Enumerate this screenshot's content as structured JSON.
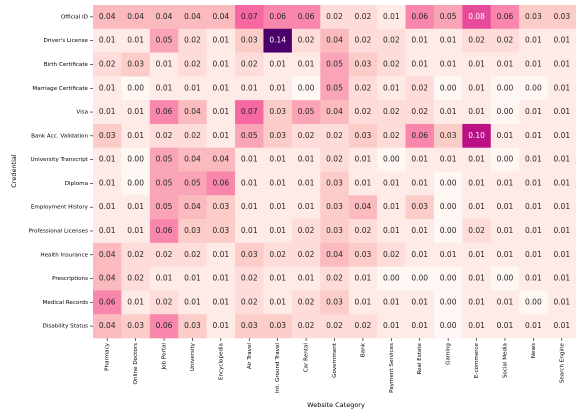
{
  "chart_data": {
    "type": "heatmap",
    "xlabel": "Website Category",
    "ylabel": "Credential",
    "colormap": [
      "#fff7f3",
      "#fde0dd",
      "#fcc5c0",
      "#fa9fb5",
      "#f768a1",
      "#dd3497",
      "#ae017e",
      "#7a0177",
      "#49006a"
    ],
    "x": [
      "Pharmacy",
      "Online Doctors",
      "Job Portal",
      "University",
      "Encyclopedia",
      "Air Travel",
      "Int. Ground Travel",
      "Car Rental",
      "Government",
      "Bank",
      "Payment Services",
      "Real Estate",
      "Gaming",
      "E-commerce",
      "Social Media",
      "News",
      "Search Engine"
    ],
    "y": [
      "Official ID",
      "Driver's License",
      "Birth Certificate",
      "Marriage Certificate",
      "Visa",
      "Bank Acc. Validation",
      "University Transcript",
      "Diploma",
      "Employment History",
      "Professional Licenses",
      "Health Insurance",
      "Prescriptions",
      "Medical Records",
      "Disability Status"
    ],
    "values": [
      [
        0.04,
        0.04,
        0.04,
        0.04,
        0.04,
        0.07,
        0.06,
        0.06,
        0.02,
        0.02,
        0.01,
        0.06,
        0.05,
        0.08,
        0.06,
        0.03,
        0.03
      ],
      [
        0.01,
        0.01,
        0.05,
        0.02,
        0.01,
        0.03,
        0.14,
        0.02,
        0.04,
        0.02,
        0.02,
        0.01,
        0.01,
        0.02,
        0.02,
        0.01,
        0.01
      ],
      [
        0.02,
        0.03,
        0.01,
        0.02,
        0.01,
        0.02,
        0.01,
        0.01,
        0.05,
        0.03,
        0.02,
        0.01,
        0.01,
        0.01,
        0.01,
        0.01,
        0.01
      ],
      [
        0.01,
        0.0,
        0.01,
        0.01,
        0.01,
        0.01,
        0.01,
        0.0,
        0.05,
        0.02,
        0.01,
        0.02,
        0.0,
        0.01,
        0.0,
        0.0,
        0.01
      ],
      [
        0.01,
        0.01,
        0.06,
        0.04,
        0.01,
        0.07,
        0.03,
        0.05,
        0.04,
        0.02,
        0.02,
        0.02,
        0.01,
        0.01,
        0.0,
        0.01,
        0.01
      ],
      [
        0.03,
        0.01,
        0.02,
        0.02,
        0.01,
        0.05,
        0.03,
        0.02,
        0.02,
        0.03,
        0.02,
        0.06,
        0.03,
        0.1,
        0.01,
        0.01,
        0.01
      ],
      [
        0.01,
        0.0,
        0.05,
        0.04,
        0.04,
        0.01,
        0.01,
        0.01,
        0.02,
        0.01,
        0.0,
        0.01,
        0.01,
        0.01,
        0.0,
        0.01,
        0.01
      ],
      [
        0.01,
        0.0,
        0.05,
        0.05,
        0.06,
        0.01,
        0.01,
        0.01,
        0.03,
        0.01,
        0.01,
        0.01,
        0.0,
        0.01,
        0.01,
        0.01,
        0.01
      ],
      [
        0.01,
        0.01,
        0.05,
        0.04,
        0.03,
        0.01,
        0.01,
        0.01,
        0.03,
        0.04,
        0.01,
        0.03,
        0.0,
        0.01,
        0.01,
        0.01,
        0.01
      ],
      [
        0.01,
        0.01,
        0.06,
        0.03,
        0.03,
        0.01,
        0.01,
        0.02,
        0.03,
        0.02,
        0.01,
        0.01,
        0.0,
        0.02,
        0.01,
        0.01,
        0.01
      ],
      [
        0.04,
        0.02,
        0.02,
        0.02,
        0.01,
        0.03,
        0.02,
        0.02,
        0.04,
        0.03,
        0.02,
        0.01,
        0.01,
        0.01,
        0.01,
        0.01,
        0.01
      ],
      [
        0.04,
        0.02,
        0.01,
        0.01,
        0.01,
        0.02,
        0.01,
        0.01,
        0.02,
        0.01,
        0.0,
        0.0,
        0.0,
        0.01,
        0.0,
        0.01,
        0.01
      ],
      [
        0.06,
        0.01,
        0.02,
        0.01,
        0.01,
        0.02,
        0.01,
        0.02,
        0.03,
        0.01,
        0.01,
        0.01,
        0.0,
        0.01,
        0.01,
        0.0,
        0.01
      ],
      [
        0.04,
        0.03,
        0.06,
        0.03,
        0.01,
        0.03,
        0.03,
        0.02,
        0.02,
        0.02,
        0.01,
        0.01,
        0.0,
        0.01,
        0.01,
        0.01,
        0.01
      ]
    ],
    "value_labels": [
      [
        "0.04",
        "0.04",
        "0.04",
        "0.04",
        "0.04",
        "0.07",
        "0.06",
        "0.06",
        "0.02",
        "0.02",
        "0.01",
        "0.06",
        "0.05",
        "0.08",
        "0.06",
        "0.03",
        "0.03"
      ],
      [
        "0.01",
        "0.01",
        "0.05",
        "0.02",
        "0.01",
        "0.03",
        "0.14",
        "0.02",
        "0.04",
        "0.02",
        "0.02",
        "0.01",
        "0.01",
        "0.02",
        "0.02",
        "0.01",
        "0.01"
      ],
      [
        "0.02",
        "0.03",
        "0.01",
        "0.02",
        "0.01",
        "0.02",
        "0.01",
        "0.01",
        "0.05",
        "0.03",
        "0.02",
        "0.01",
        "0.01",
        "0.01",
        "0.01",
        "0.01",
        "0.01"
      ],
      [
        "0.01",
        "0.00",
        "0.01",
        "0.01",
        "0.01",
        "0.01",
        "0.01",
        "0.00",
        "0.05",
        "0.02",
        "0.01",
        "0.02",
        "0.00",
        "0.01",
        "0.00",
        "0.00",
        "0.01"
      ],
      [
        "0.01",
        "0.01",
        "0.06",
        "0.04",
        "0.01",
        "0.07",
        "0.03",
        "0.05",
        "0.04",
        "0.02",
        "0.02",
        "0.02",
        "0.01",
        "0.01",
        "0.00",
        "0.01",
        "0.01"
      ],
      [
        "0.03",
        "0.01",
        "0.02",
        "0.02",
        "0.01",
        "0.05",
        "0.03",
        "0.02",
        "0.02",
        "0.03",
        "0.02",
        "0.06",
        "0.03",
        "0.10",
        "0.01",
        "0.01",
        "0.01"
      ],
      [
        "0.01",
        "0.00",
        "0.05",
        "0.04",
        "0.04",
        "0.01",
        "0.01",
        "0.01",
        "0.02",
        "0.01",
        "0.00",
        "0.01",
        "0.01",
        "0.01",
        "0.00",
        "0.01",
        "0.01"
      ],
      [
        "0.01",
        "0.00",
        "0.05",
        "0.05",
        "0.06",
        "0.01",
        "0.01",
        "0.01",
        "0.03",
        "0.01",
        "0.01",
        "0.01",
        "0.00",
        "0.01",
        "0.01",
        "0.01",
        "0.01"
      ],
      [
        "0.01",
        "0.01",
        "0.05",
        "0.04",
        "0.03",
        "0.01",
        "0.01",
        "0.01",
        "0.03",
        "0.04",
        "0.01",
        "0.03",
        "0.00",
        "0.01",
        "0.01",
        "0.01",
        "0.01"
      ],
      [
        "0.01",
        "0.01",
        "0.06",
        "0.03",
        "0.03",
        "0.01",
        "0.01",
        "0.02",
        "0.03",
        "0.02",
        "0.01",
        "0.01",
        "0.00",
        "0.02",
        "0.01",
        "0.01",
        "0.01"
      ],
      [
        "0.04",
        "0.02",
        "0.02",
        "0.02",
        "0.01",
        "0.03",
        "0.02",
        "0.02",
        "0.04",
        "0.03",
        "0.02",
        "0.01",
        "0.01",
        "0.01",
        "0.01",
        "0.01",
        "0.01"
      ],
      [
        "0.04",
        "0.02",
        "0.01",
        "0.01",
        "0.01",
        "0.02",
        "0.01",
        "0.01",
        "0.02",
        "0.01",
        "0.00",
        "0.00",
        "0.00",
        "0.01",
        "0.00",
        "0.01",
        "0.01"
      ],
      [
        "0.06",
        "0.01",
        "0.02",
        "0.01",
        "0.01",
        "0.02",
        "0.01",
        "0.02",
        "0.03",
        "0.01",
        "0.01",
        "0.01",
        "0.00",
        "0.01",
        "0.01",
        "0.00",
        "0.01"
      ],
      [
        "0.04",
        "0.03",
        "0.06",
        "0.03",
        "0.01",
        "0.03",
        "0.03",
        "0.02",
        "0.02",
        "0.02",
        "0.01",
        "0.01",
        "0.00",
        "0.01",
        "0.01",
        "0.01",
        "0.01"
      ]
    ]
  }
}
